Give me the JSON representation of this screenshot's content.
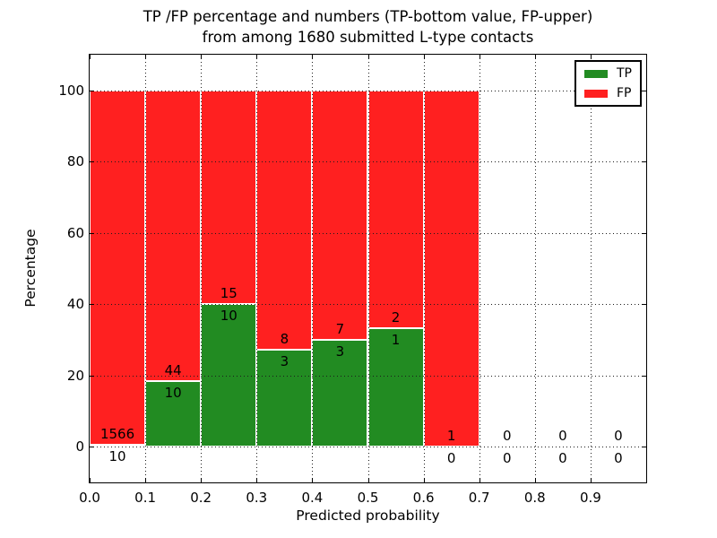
{
  "figure": {
    "title_line1": "TP /FP percentage and numbers (TP-bottom value, FP-upper)",
    "title_line2": "from among 1680 submitted L-type contacts",
    "xlabel": "Predicted probability",
    "ylabel": "Percentage"
  },
  "legend": {
    "position": "upper right",
    "entries": [
      {
        "label": "TP",
        "color": "#228b22"
      },
      {
        "label": "FP",
        "color": "#ff2020"
      }
    ]
  },
  "chart_data": {
    "type": "bar",
    "stacked": true,
    "title": "TP /FP percentage and numbers (TP-bottom value, FP-upper) from among 1680 submitted L-type contacts",
    "xlabel": "Predicted probability",
    "ylabel": "Percentage",
    "xlim": [
      0.0,
      1.0
    ],
    "ylim": [
      -10,
      110
    ],
    "xticks": [
      0.0,
      0.1,
      0.2,
      0.3,
      0.4,
      0.5,
      0.6,
      0.7,
      0.8,
      0.9
    ],
    "xtick_labels": [
      "0.0",
      "0.1",
      "0.2",
      "0.3",
      "0.4",
      "0.5",
      "0.6",
      "0.7",
      "0.8",
      "0.9"
    ],
    "yticks": [
      0,
      20,
      40,
      60,
      80,
      100
    ],
    "ytick_labels": [
      "0",
      "20",
      "40",
      "60",
      "80",
      "100"
    ],
    "grid": true,
    "legend_position": "upper right",
    "total_contacts": 1680,
    "bin_width": 0.1,
    "bin_starts": [
      0.0,
      0.1,
      0.2,
      0.3,
      0.4,
      0.5,
      0.6,
      0.7,
      0.8,
      0.9
    ],
    "series": [
      {
        "name": "TP",
        "color": "#228b22",
        "counts": [
          10,
          10,
          10,
          3,
          3,
          1,
          0,
          0,
          0,
          0
        ]
      },
      {
        "name": "FP",
        "color": "#ff2020",
        "counts": [
          1566,
          44,
          15,
          8,
          7,
          2,
          1,
          0,
          0,
          0
        ]
      }
    ],
    "tp_percent": [
      0.63,
      18.52,
      40.0,
      27.27,
      30.0,
      33.33,
      0.0,
      0.0,
      0.0,
      0.0
    ]
  }
}
